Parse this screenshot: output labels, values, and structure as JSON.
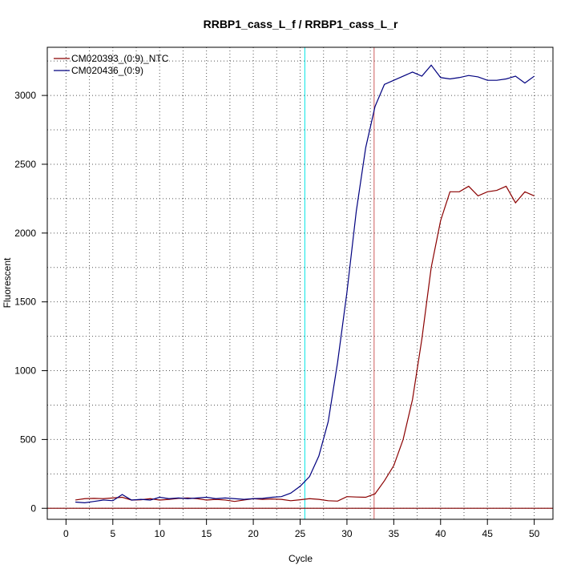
{
  "chart_data": {
    "type": "line",
    "title": "RRBP1_cass_L_f / RRBP1_cass_L_r",
    "xlabel": "Cycle",
    "ylabel": "Fluorescent",
    "xlim": [
      -2,
      52
    ],
    "ylim": [
      -80,
      3350
    ],
    "xticks": [
      0,
      5,
      10,
      15,
      20,
      25,
      30,
      35,
      40,
      45,
      50
    ],
    "yticks": [
      0,
      500,
      1000,
      1500,
      2000,
      2500,
      3000
    ],
    "grid": true,
    "legend_position": "top-left",
    "threshold_y": 0,
    "threshold_color": "#8b1a1a",
    "vlines": [
      {
        "x": 25.5,
        "color": "#00e5e5"
      },
      {
        "x": 32.9,
        "color": "#cd5c5c"
      }
    ],
    "series": [
      {
        "name": "CM020393_(0:9)_NTC",
        "color": "#8b0000",
        "x": [
          1,
          2,
          3,
          4,
          5,
          6,
          7,
          8,
          9,
          10,
          11,
          12,
          13,
          14,
          15,
          16,
          17,
          18,
          19,
          20,
          21,
          22,
          23,
          24,
          25,
          26,
          27,
          28,
          29,
          30,
          31,
          32,
          33,
          34,
          35,
          36,
          37,
          38,
          39,
          40,
          41,
          42,
          43,
          44,
          45,
          46,
          47,
          48,
          49,
          50
        ],
        "y": [
          60,
          70,
          72,
          70,
          75,
          80,
          60,
          62,
          70,
          60,
          65,
          72,
          75,
          70,
          60,
          65,
          60,
          50,
          60,
          70,
          65,
          68,
          65,
          55,
          62,
          70,
          65,
          55,
          52,
          85,
          82,
          80,
          105,
          200,
          310,
          500,
          790,
          1230,
          1750,
          2090,
          2300,
          2300,
          2340,
          2270,
          2300,
          2310,
          2340,
          2220,
          2300,
          2270
        ]
      },
      {
        "name": "CM020436_(0:9)",
        "color": "#00007f",
        "x": [
          1,
          2,
          3,
          4,
          5,
          6,
          7,
          8,
          9,
          10,
          11,
          12,
          13,
          14,
          15,
          16,
          17,
          18,
          19,
          20,
          21,
          22,
          23,
          24,
          25,
          26,
          27,
          28,
          29,
          30,
          31,
          32,
          33,
          34,
          35,
          36,
          37,
          38,
          39,
          40,
          41,
          42,
          43,
          44,
          45,
          46,
          47,
          48,
          49,
          50
        ],
        "y": [
          45,
          40,
          50,
          60,
          55,
          100,
          60,
          65,
          60,
          80,
          70,
          75,
          70,
          75,
          80,
          70,
          75,
          70,
          65,
          70,
          72,
          80,
          85,
          110,
          160,
          230,
          380,
          630,
          1060,
          1570,
          2160,
          2620,
          2920,
          3080,
          3110,
          3140,
          3170,
          3140,
          3220,
          3130,
          3120,
          3130,
          3145,
          3135,
          3110,
          3110,
          3120,
          3140,
          3090,
          3140
        ]
      }
    ]
  }
}
